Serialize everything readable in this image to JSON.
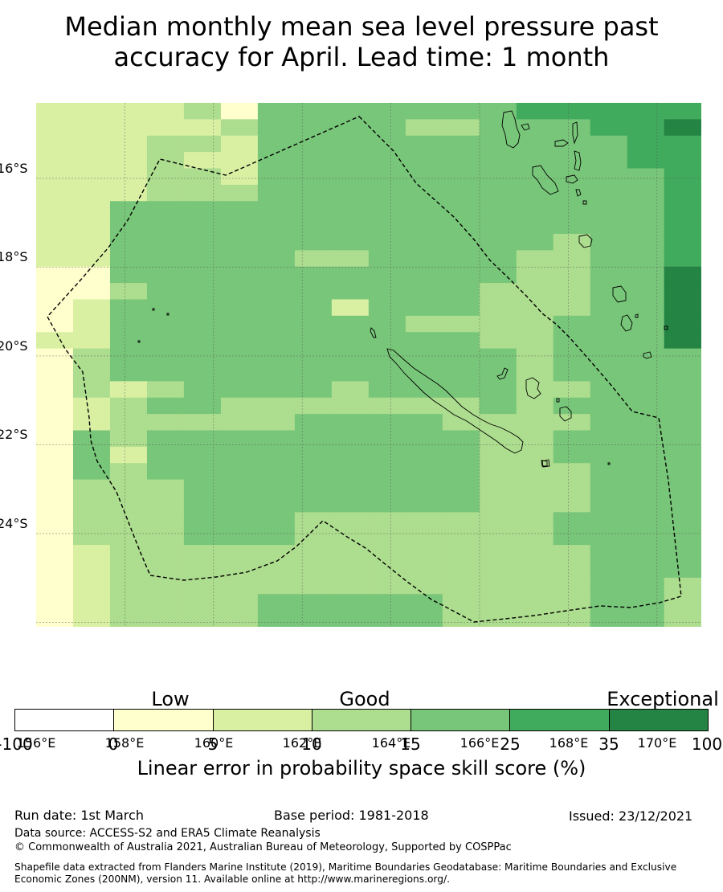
{
  "title_line1": "Median monthly mean sea level pressure past",
  "title_line2": "accuracy for April. Lead time: 1 month",
  "map": {
    "lon_range": [
      156,
      171
    ],
    "lat_range": [
      -14.3,
      -26.1
    ],
    "cell_size_deg": 0.833,
    "x_ticks": [
      "156°E",
      "158°E",
      "160°E",
      "162°E",
      "164°E",
      "166°E",
      "168°E",
      "170°E"
    ],
    "y_ticks": [
      "16°S",
      "18°S",
      "20°S",
      "22°S",
      "24°S"
    ],
    "grid": true,
    "skill_class_grid": [
      "222231444444455555",
      "222223444433444556",
      "222332444444444455",
      "222322444444444455",
      "222332444444444445",
      "222333444444444445",
      "224444444444444445",
      "224444444444444445",
      "224444444444443445",
      "224444433444433445",
      "114444444444433446",
      "113444444444333446",
      "124444442444333446",
      "124444444433334446",
      "224444444444334446",
      "134444444444434444",
      "134444444444434444",
      "132344443444433444",
      "123443333333434444",
      "123333344443333444",
      "143444444444334444",
      "142444444444334444",
      "143444444444333444",
      "133344444444333444",
      "133344444444333444",
      "133344433333334444",
      "133344433333334444",
      "123333333333333444",
      "123333333333333444",
      "123333333333333443",
      "123333444443333443",
      "123333444443333443"
    ],
    "class_colors": [
      "#ffffff",
      "#feffcc",
      "#d9f0a3",
      "#addd8e",
      "#78c679",
      "#41ab5d",
      "#238443"
    ]
  },
  "colorbar": {
    "categories": [
      "Low",
      "Good",
      "Exceptional"
    ],
    "ticks": [
      "-100",
      "0",
      "5",
      "10",
      "15",
      "25",
      "35",
      "100"
    ],
    "colors": [
      "#ffffff",
      "#feffcc",
      "#d9f0a3",
      "#addd8e",
      "#78c679",
      "#41ab5d",
      "#238443"
    ],
    "label": "Linear error in probability space skill score (%)"
  },
  "footer": {
    "run_date": "Run date: 1st March",
    "base_period": "Base period: 1981-2018",
    "issued": "Issued: 23/12/2021",
    "data_source": "Data source: ACCESS-S2 and ERA5 Climate Reanalysis",
    "copyright": "© Commonwealth of Australia 2021, Australian Bureau of Meteorology, Supported by COSPPac",
    "shapefile": "Shapefile data extracted from Flanders Marine Institute (2019), Maritime Boundaries Geodatabase: Maritime Boundaries and Exclusive Economic Zones (200NM), version 11. Available online at http://www.marineregions.org/."
  }
}
